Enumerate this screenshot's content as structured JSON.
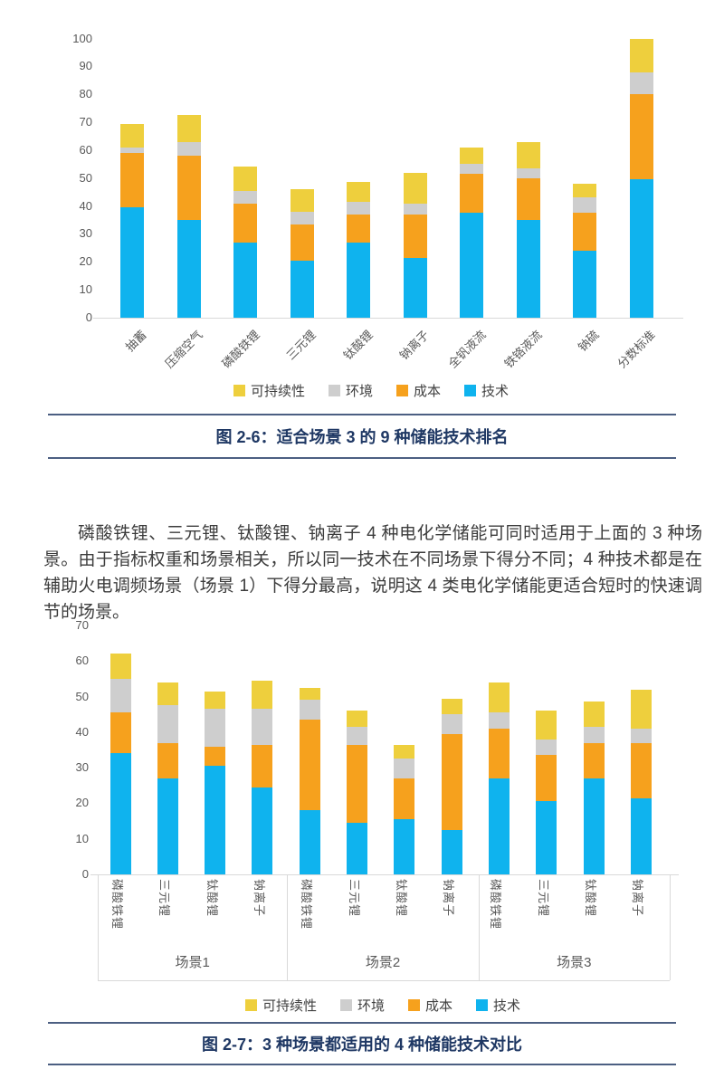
{
  "colors": {
    "tech_blue": "#0fb3ee",
    "cost_orange": "#f6a11d",
    "env_gray": "#cecece",
    "sust_yellow": "#eecf3d",
    "axis_text": "#595959",
    "legend_text": "#404040",
    "caption_text": "#1f3864",
    "caption_rule": "#4c5f82",
    "axis_line": "#d9d9d9",
    "body_text": "#3c3c3c"
  },
  "figure1": {
    "caption": "图 2-6：适合场景 3 的 9 种储能技术排名"
  },
  "figure2": {
    "caption": "图 2-7：3 种场景都适用的 4 种储能技术对比"
  },
  "paragraph": "磷酸铁锂、三元锂、钛酸锂、钠离子 4 种电化学储能可同时适用于上面的 3 种场景。由于指标权重和场景相关，所以同一技术在不同场景下得分不同；4 种技术都是在辅助火电调频场景（场景 1）下得分最高，说明这 4 类电化学储能更适合短时的快速调节的场景。",
  "chart_data": [
    {
      "type": "bar",
      "stacked": true,
      "title": "",
      "xlabel": "",
      "ylabel": "",
      "ylim": [
        0,
        100
      ],
      "ytick_step": 10,
      "grid": false,
      "legend_position": "bottom",
      "legend": [
        {
          "label": "可持续性",
          "color": "#eecf3d"
        },
        {
          "label": "环境",
          "color": "#cecece"
        },
        {
          "label": "成本",
          "color": "#f6a11d"
        },
        {
          "label": "技术",
          "color": "#0fb3ee"
        }
      ],
      "categories": [
        "抽蓄",
        "压缩空气",
        "磷酸铁锂",
        "三元锂",
        "钛酸锂",
        "钠离子",
        "全钒液流",
        "铁铬液流",
        "钠硫",
        "分数标准"
      ],
      "series": [
        {
          "name": "技术",
          "color": "#0fb3ee",
          "values": [
            39.5,
            35,
            27,
            20.5,
            27,
            21.5,
            37.5,
            35,
            24,
            49.5
          ]
        },
        {
          "name": "成本",
          "color": "#f6a11d",
          "values": [
            19.5,
            23,
            14,
            13,
            10,
            15.5,
            14,
            15,
            13.5,
            30.5
          ]
        },
        {
          "name": "环境",
          "color": "#cecece",
          "values": [
            2,
            5,
            4.5,
            4.5,
            4.5,
            4,
            3.5,
            3.5,
            5.5,
            8
          ]
        },
        {
          "name": "可持续性",
          "color": "#eecf3d",
          "values": [
            8.5,
            9.5,
            8.5,
            8,
            7,
            11,
            6,
            9.5,
            5,
            12
          ]
        }
      ],
      "stack_totals": [
        69.5,
        72.5,
        54,
        46,
        48.5,
        52,
        61,
        63,
        48,
        100
      ]
    },
    {
      "type": "bar",
      "stacked": true,
      "title": "",
      "xlabel": "",
      "ylabel": "",
      "ylim": [
        0,
        70
      ],
      "ytick_step": 10,
      "grid": false,
      "legend_position": "bottom",
      "legend": [
        {
          "label": "可持续性",
          "color": "#eecf3d"
        },
        {
          "label": "环境",
          "color": "#cecece"
        },
        {
          "label": "成本",
          "color": "#f6a11d"
        },
        {
          "label": "技术",
          "color": "#0fb3ee"
        }
      ],
      "groups": [
        {
          "label": "场景1",
          "categories": [
            "磷酸铁锂",
            "三元锂",
            "钛酸锂",
            "钠离子"
          ]
        },
        {
          "label": "场景2",
          "categories": [
            "磷酸铁锂",
            "三元锂",
            "钛酸锂",
            "钠离子"
          ]
        },
        {
          "label": "场景3",
          "categories": [
            "磷酸铁锂",
            "三元锂",
            "钛酸锂",
            "钠离子"
          ]
        }
      ],
      "series": [
        {
          "name": "技术",
          "color": "#0fb3ee",
          "values": [
            34,
            27,
            30.5,
            24.5,
            18,
            14.5,
            15.5,
            12.5,
            27,
            20.5,
            27,
            21.5
          ]
        },
        {
          "name": "成本",
          "color": "#f6a11d",
          "values": [
            11.5,
            10,
            5.5,
            12,
            25.5,
            22,
            11.5,
            27,
            14,
            13,
            10,
            15.5
          ]
        },
        {
          "name": "环境",
          "color": "#cecece",
          "values": [
            9.5,
            10.5,
            10.5,
            10,
            5.5,
            5,
            5.5,
            5.5,
            4.5,
            4.5,
            4.5,
            4
          ]
        },
        {
          "name": "可持续性",
          "color": "#eecf3d",
          "values": [
            7,
            6.5,
            5,
            8,
            3.5,
            4.5,
            4,
            4.5,
            8.5,
            8,
            7,
            11
          ]
        }
      ],
      "stack_totals": [
        62,
        54,
        51.5,
        54.5,
        52.5,
        46,
        36.5,
        49.5,
        54,
        46,
        48.5,
        52
      ]
    }
  ]
}
